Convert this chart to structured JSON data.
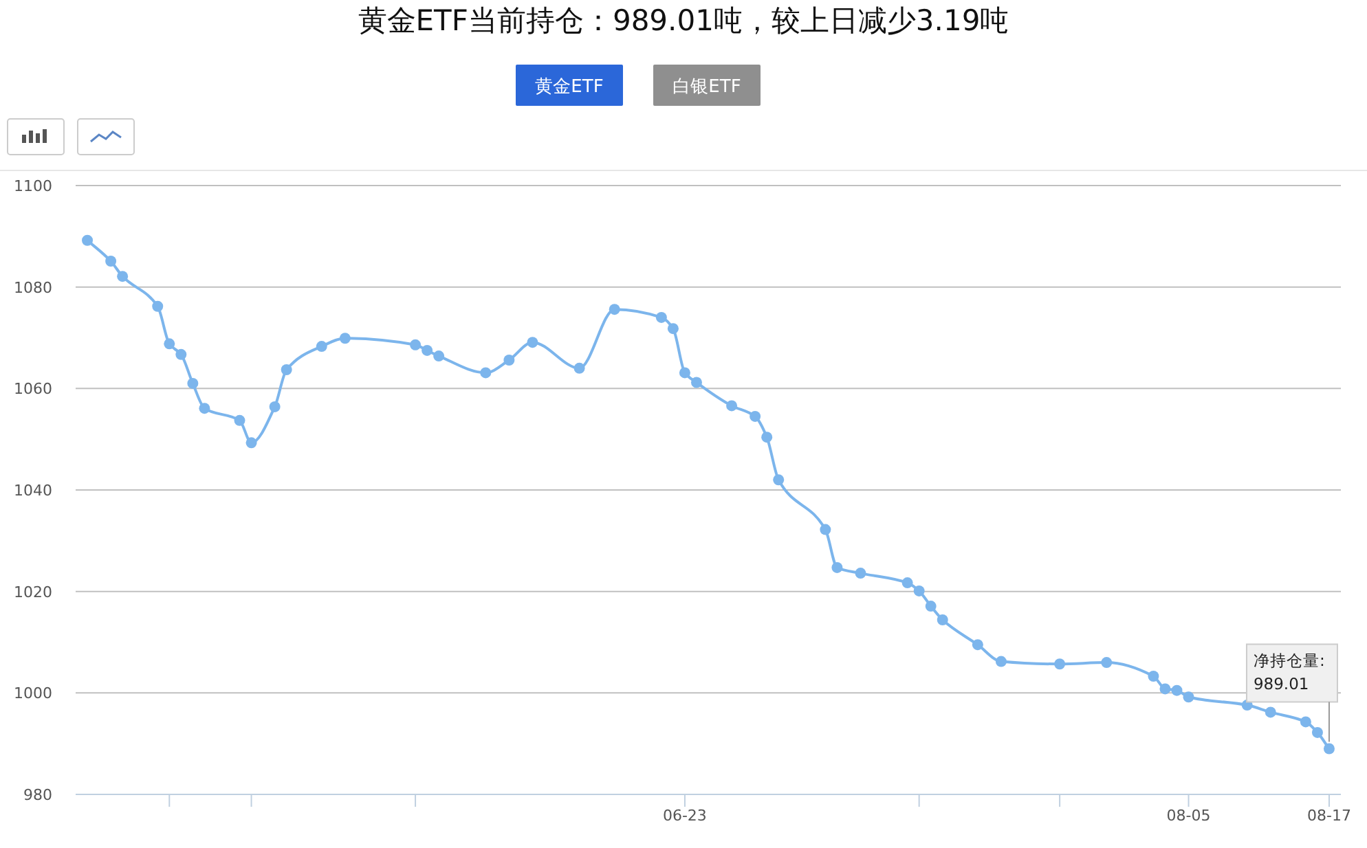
{
  "chart_data": {
    "type": "line",
    "title": "黄金ETF当前持仓：989.01吨，较上日减少3.19吨",
    "x": [
      "--05-03",
      "--05-05",
      "--05-06",
      "--05-09",
      "--05-10",
      "--05-11",
      "--05-12",
      "--05-13",
      "--05-16",
      "--05-17",
      "--05-19",
      "--05-20",
      "--05-23",
      "--05-25",
      "--05-31",
      "--06-01",
      "--06-02",
      "--06-06",
      "--06-08",
      "--06-10",
      "--06-14",
      "--06-17",
      "--06-21",
      "--06-22",
      "--06-23",
      "--06-24",
      "--06-27",
      "--06-29",
      "--06-30",
      "--07-01",
      "--07-05",
      "--07-06",
      "--07-08",
      "--07-12",
      "--07-13",
      "--07-14",
      "--07-15",
      "--07-18",
      "--07-20",
      "--07-25",
      "--07-29",
      "--08-02",
      "--08-03",
      "--08-04",
      "--08-05",
      "--08-10",
      "--08-12",
      "--08-15",
      "--08-16",
      "--08-17"
    ],
    "series": [
      {
        "color": "#7cb5ec",
        "values": [
          1089.2,
          1085.1,
          1082.1,
          1076.2,
          1068.8,
          1066.7,
          1061.0,
          1056.1,
          1053.7,
          1049.3,
          1056.4,
          1063.7,
          1068.3,
          1069.9,
          1068.6,
          1067.5,
          1066.4,
          1063.1,
          1065.6,
          1069.1,
          1064.0,
          1075.6,
          1074.0,
          1071.8,
          1063.1,
          1061.2,
          1056.6,
          1054.5,
          1050.4,
          1042.0,
          1032.2,
          1024.7,
          1023.6,
          1021.7,
          1020.1,
          1017.1,
          1014.4,
          1009.5,
          1006.2,
          1005.7,
          1006.0,
          1003.3,
          1000.8,
          1000.5,
          999.2,
          997.6,
          996.2,
          994.3,
          992.2,
          989.01
        ]
      }
    ],
    "xlim": [
      "--05-02",
      "--08-18"
    ],
    "xticks": [
      {
        "value": "--05-10",
        "label": null
      },
      {
        "value": "--05-17",
        "label": null
      },
      {
        "value": "--05-31",
        "label": null
      },
      {
        "value": "--06-23",
        "label": "06-23"
      },
      {
        "value": "--07-13",
        "label": null
      },
      {
        "value": "--07-25",
        "label": null
      },
      {
        "value": "--08-05",
        "label": "08-05"
      },
      {
        "value": "--08-17",
        "label": "08-17"
      }
    ],
    "ylim": [
      980,
      1100
    ],
    "yticks": [
      980,
      1000,
      1020,
      1040,
      1060,
      1080,
      1100
    ],
    "grid": "y",
    "marker": "circle",
    "line_style": "solid",
    "annotations": [
      "黄金ETF",
      "白银ETF",
      {
        "text": "净持仓量: 989.01",
        "x": "--08-17",
        "y": 989.01
      }
    ]
  }
}
